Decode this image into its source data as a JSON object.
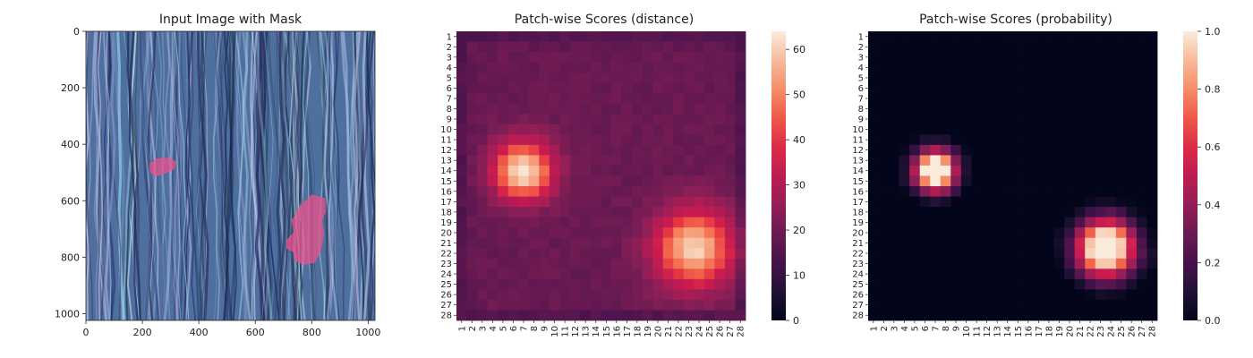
{
  "chart_data": [
    {
      "type": "image",
      "title": "Input Image with Mask",
      "xlim": [
        0,
        1024
      ],
      "ylim": [
        1024,
        0
      ],
      "xticks": [
        0,
        200,
        400,
        600,
        800,
        1000
      ],
      "yticks": [
        0,
        200,
        400,
        600,
        800,
        1000
      ],
      "mask_regions": [
        {
          "name": "small-blob",
          "cx": 270,
          "cy": 480
        },
        {
          "name": "large-blob",
          "cx": 780,
          "cy": 715
        }
      ],
      "colors": {
        "wood": "#4f6f9e",
        "mask": "#f0508a"
      }
    },
    {
      "type": "heatmap",
      "title": "Patch-wise Scores (distance)",
      "size": 28,
      "vmin": 0,
      "vmax": 64,
      "colorbar_ticks": [
        0,
        10,
        20,
        30,
        40,
        50,
        60
      ],
      "grid_rule": "value = base 19 + 45*exp(-d1^2/(2*2.0^2)) + 42*exp(-d2^2/(2*2.6^2)), d1 from (7,14), d2 from (23.5,21.5), border rows/cols lower (~14-16)",
      "hotspots": [
        {
          "center_col": 7,
          "center_row": 14,
          "peak": 64
        },
        {
          "center_col": 23.5,
          "center_row": 21.5,
          "peak": 60
        }
      ],
      "base_value": 19
    },
    {
      "type": "heatmap",
      "title": "Patch-wise Scores (probability)",
      "size": 28,
      "vmin": 0,
      "vmax": 1,
      "colorbar_ticks": [
        "0.0",
        "0.2",
        "0.4",
        "0.6",
        "0.8",
        "1.0"
      ],
      "hotspots": [
        {
          "center_col": 7,
          "center_row": 14,
          "peak": 1.0
        },
        {
          "center_col": 23.5,
          "center_row": 21.5,
          "peak": 1.0
        }
      ],
      "base_value": 0.0
    }
  ]
}
